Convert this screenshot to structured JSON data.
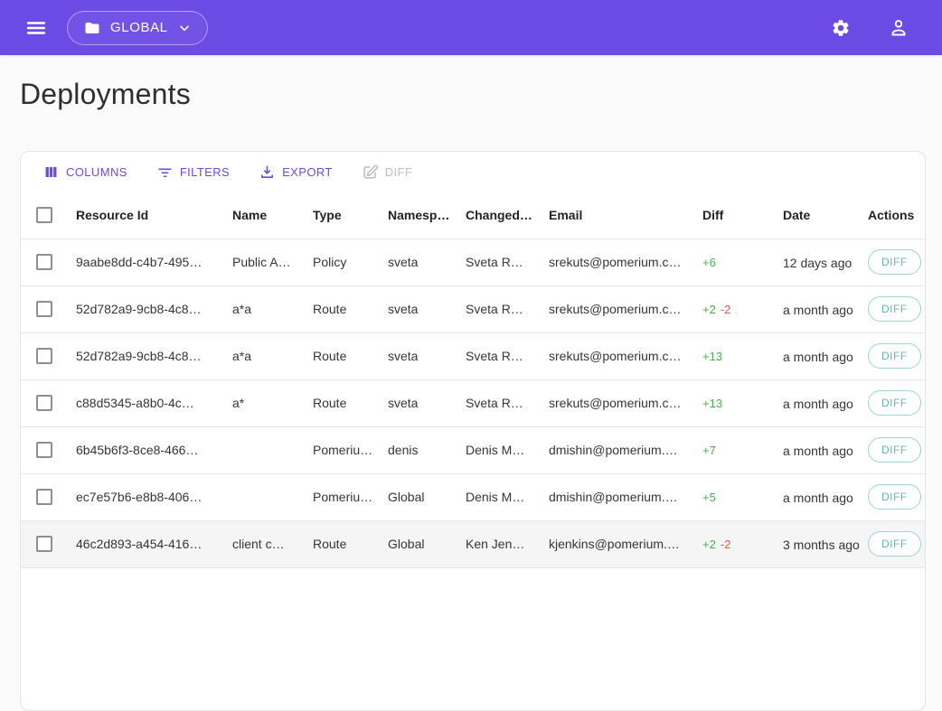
{
  "appbar": {
    "namespace_label": "GLOBAL"
  },
  "page": {
    "title": "Deployments"
  },
  "toolbar": {
    "columns_label": "COLUMNS",
    "filters_label": "FILTERS",
    "export_label": "EXPORT",
    "diff_label": "DIFF"
  },
  "table": {
    "columns": [
      "Resource Id",
      "Name",
      "Type",
      "Namesp…",
      "Changed…",
      "Email",
      "Diff",
      "Date",
      "Actions"
    ],
    "action_label": "DIFF",
    "rows": [
      {
        "resource_id": "9aabe8dd-c4b7-495…",
        "name": "Public A…",
        "type": "Policy",
        "namespace": "sveta",
        "changed_by": "Sveta R…",
        "email": "srekuts@pomerium.c…",
        "diff_added": "+6",
        "diff_removed": "",
        "date": "12 days ago",
        "highlighted": false
      },
      {
        "resource_id": "52d782a9-9cb8-4c8…",
        "name": "a*a",
        "type": "Route",
        "namespace": "sveta",
        "changed_by": "Sveta R…",
        "email": "srekuts@pomerium.c…",
        "diff_added": "+2",
        "diff_removed": "-2",
        "date": "a month ago",
        "highlighted": false
      },
      {
        "resource_id": "52d782a9-9cb8-4c8…",
        "name": "a*a",
        "type": "Route",
        "namespace": "sveta",
        "changed_by": "Sveta R…",
        "email": "srekuts@pomerium.c…",
        "diff_added": "+13",
        "diff_removed": "",
        "date": "a month ago",
        "highlighted": false
      },
      {
        "resource_id": "c88d5345-a8b0-4c…",
        "name": "a*",
        "type": "Route",
        "namespace": "sveta",
        "changed_by": "Sveta R…",
        "email": "srekuts@pomerium.c…",
        "diff_added": "+13",
        "diff_removed": "",
        "date": "a month ago",
        "highlighted": false
      },
      {
        "resource_id": "6b45b6f3-8ce8-466…",
        "name": "",
        "type": "Pomeriu…",
        "namespace": "denis",
        "changed_by": "Denis M…",
        "email": "dmishin@pomerium.…",
        "diff_added": "+7",
        "diff_removed": "",
        "date": "a month ago",
        "highlighted": false
      },
      {
        "resource_id": "ec7e57b6-e8b8-406…",
        "name": "",
        "type": "Pomeriu…",
        "namespace": "Global",
        "changed_by": "Denis M…",
        "email": "dmishin@pomerium.…",
        "diff_added": "+5",
        "diff_removed": "",
        "date": "a month ago",
        "highlighted": false
      },
      {
        "resource_id": "46c2d893-a454-416…",
        "name": "client c…",
        "type": "Route",
        "namespace": "Global",
        "changed_by": "Ken Jen…",
        "email": "kjenkins@pomerium.…",
        "diff_added": "+2",
        "diff_removed": "-2",
        "date": "3 months ago",
        "highlighted": true
      }
    ]
  },
  "colors": {
    "accent_purple": "#6C4AE4",
    "diff_green": "#4CAF50",
    "diff_red": "#EF5350",
    "action_teal": "#63B8B3",
    "action_teal_border": "#9AD5D1",
    "disabled_gray": "#BFBFC4"
  }
}
